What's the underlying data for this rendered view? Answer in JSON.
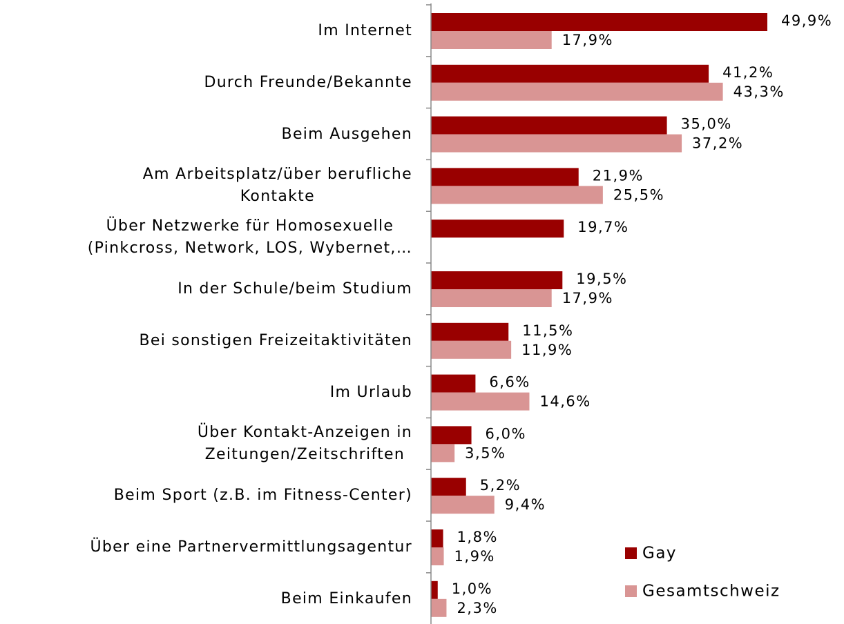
{
  "chart_data": {
    "type": "bar",
    "orientation": "horizontal",
    "categories": [
      "Im Internet",
      "Durch Freunde/Bekannte",
      "Beim Ausgehen",
      "Am Arbeitsplatz/über berufliche\nKontakte",
      "Über Netzwerke für Homosexuelle\n(Pinkcross, Network, LOS, Wybernet,…",
      "In der Schule/beim Studium",
      "Bei sonstigen Freizeitaktivitäten",
      "Im Urlaub",
      "Über Kontakt-Anzeigen in\nZeitungen/Zeitschriften",
      "Beim Sport (z.B. im Fitness-Center)",
      "Über eine Partnervermittlungsagentur",
      "Beim Einkaufen"
    ],
    "series": [
      {
        "name": "Gay",
        "color": "#990000",
        "values": [
          49.9,
          41.2,
          35.0,
          21.9,
          19.7,
          19.5,
          11.5,
          6.6,
          6.0,
          5.2,
          1.8,
          1.0
        ],
        "value_labels": [
          "49,9%",
          "41,2%",
          "35,0%",
          "21,9%",
          "19,7%",
          "19,5%",
          "11,5%",
          "6,6%",
          "6,0%",
          "5,2%",
          "1,8%",
          "1,0%"
        ]
      },
      {
        "name": "Gesamtschweiz",
        "color": "#d99594",
        "values": [
          17.9,
          43.3,
          37.2,
          25.5,
          null,
          17.9,
          11.9,
          14.6,
          3.5,
          9.4,
          1.9,
          2.3
        ],
        "value_labels": [
          "17,9%",
          "43,3%",
          "37,2%",
          "25,5%",
          null,
          "17,9%",
          "11,9%",
          "14,6%",
          "3,5%",
          "9,4%",
          "1,9%",
          "2,3%"
        ]
      }
    ],
    "legend": "lower right"
  }
}
